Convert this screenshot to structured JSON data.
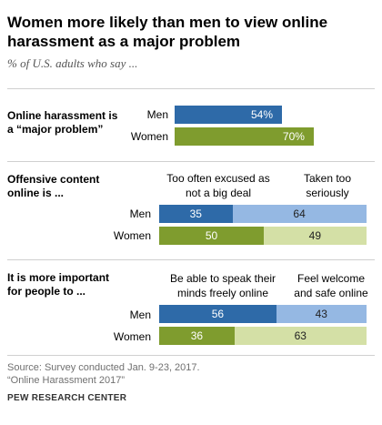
{
  "title": "Women more likely than men to view online harassment as a major problem",
  "subtitle": "% of U.S. adults who say ...",
  "colors": {
    "men_dark": "#2e6aa8",
    "women_dark": "#7f9c2e",
    "men_light": "#95b8e3",
    "women_light": "#d4e0a6"
  },
  "chart_data": [
    {
      "type": "bar",
      "question": "Online harassment is a “major problem”",
      "categories": [
        "Men",
        "Women"
      ],
      "series": [
        {
          "values": [
            54,
            70
          ]
        }
      ],
      "value_labels": [
        "54%",
        "70%"
      ]
    },
    {
      "type": "bar",
      "stacked": true,
      "question": "Offensive content online is ...",
      "categories": [
        "Men",
        "Women"
      ],
      "series": [
        {
          "name": "Too often excused as not a big deal",
          "values": [
            35,
            50
          ]
        },
        {
          "name": "Taken too seriously",
          "values": [
            64,
            49
          ]
        }
      ]
    },
    {
      "type": "bar",
      "stacked": true,
      "question": "It is more important for people to ...",
      "categories": [
        "Men",
        "Women"
      ],
      "series": [
        {
          "name": "Be able to speak their minds freely online",
          "values": [
            56,
            36
          ]
        },
        {
          "name": "Feel welcome and safe online",
          "values": [
            43,
            63
          ]
        }
      ]
    }
  ],
  "footer": {
    "source": "Source: Survey conducted Jan. 9-23, 2017.",
    "report": "“Online Harassment 2017”",
    "brand": "PEW RESEARCH CENTER"
  }
}
